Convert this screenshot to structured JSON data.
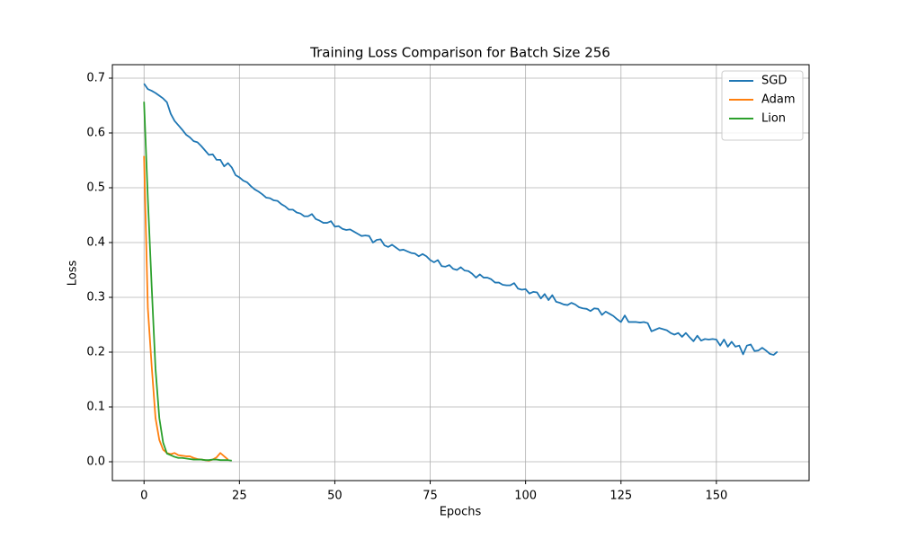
{
  "chart_data": {
    "type": "line",
    "title": "Training Loss Comparison for Batch Size 256",
    "x_label": "Epochs",
    "y_label": "Loss",
    "xlim": [
      -8.3,
      174.3
    ],
    "ylim": [
      -0.0344,
      0.7246
    ],
    "xticks": [
      0,
      25,
      50,
      75,
      100,
      125,
      150
    ],
    "yticks": [
      {
        "value": 0,
        "label": "0.0"
      },
      0.1,
      0.2,
      0.3,
      0.4,
      0.5,
      0.6,
      0.7
    ],
    "grid": true,
    "legend": "upper right",
    "series": [
      {
        "name": "SGD",
        "color": "#1f77b4",
        "x": [
          0,
          1,
          2,
          3,
          4,
          5,
          6,
          7,
          8,
          9,
          10,
          11,
          12,
          13,
          14,
          15,
          16,
          17,
          18,
          19,
          20,
          21,
          22,
          23,
          24,
          25,
          26,
          27,
          28,
          29,
          30,
          31,
          32,
          33,
          34,
          35,
          36,
          37,
          38,
          39,
          40,
          41,
          42,
          43,
          44,
          45,
          46,
          47,
          48,
          49,
          50,
          51,
          52,
          53,
          54,
          55,
          56,
          57,
          58,
          59,
          60,
          61,
          62,
          63,
          64,
          65,
          66,
          67,
          68,
          69,
          70,
          71,
          72,
          73,
          74,
          75,
          76,
          77,
          78,
          79,
          80,
          81,
          82,
          83,
          84,
          85,
          86,
          87,
          88,
          89,
          90,
          91,
          92,
          93,
          94,
          95,
          96,
          97,
          98,
          99,
          100,
          101,
          102,
          103,
          104,
          105,
          106,
          107,
          108,
          109,
          110,
          111,
          112,
          113,
          114,
          115,
          116,
          117,
          118,
          119,
          120,
          121,
          122,
          123,
          124,
          125,
          126,
          127,
          128,
          129,
          130,
          131,
          132,
          133,
          134,
          135,
          136,
          137,
          138,
          139,
          140,
          141,
          142,
          143,
          144,
          145,
          146,
          147,
          148,
          149,
          150,
          151,
          152,
          153,
          154,
          155,
          156,
          157,
          158,
          159,
          160,
          161,
          162,
          163,
          164,
          165,
          166
        ],
        "values": [
          0.69,
          0.68,
          0.677,
          0.673,
          0.668,
          0.663,
          0.656,
          0.635,
          0.622,
          0.614,
          0.606,
          0.597,
          0.592,
          0.585,
          0.583,
          0.576,
          0.568,
          0.56,
          0.561,
          0.551,
          0.551,
          0.539,
          0.545,
          0.537,
          0.523,
          0.519,
          0.513,
          0.51,
          0.503,
          0.497,
          0.493,
          0.488,
          0.482,
          0.481,
          0.477,
          0.476,
          0.47,
          0.466,
          0.46,
          0.46,
          0.455,
          0.453,
          0.448,
          0.448,
          0.452,
          0.443,
          0.44,
          0.436,
          0.436,
          0.439,
          0.429,
          0.43,
          0.425,
          0.423,
          0.424,
          0.42,
          0.416,
          0.412,
          0.413,
          0.412,
          0.4,
          0.405,
          0.406,
          0.395,
          0.392,
          0.396,
          0.391,
          0.386,
          0.387,
          0.384,
          0.381,
          0.38,
          0.375,
          0.379,
          0.375,
          0.368,
          0.364,
          0.368,
          0.357,
          0.356,
          0.359,
          0.352,
          0.35,
          0.355,
          0.349,
          0.348,
          0.343,
          0.336,
          0.342,
          0.336,
          0.336,
          0.333,
          0.327,
          0.327,
          0.323,
          0.322,
          0.322,
          0.326,
          0.316,
          0.314,
          0.315,
          0.307,
          0.31,
          0.309,
          0.298,
          0.306,
          0.295,
          0.304,
          0.292,
          0.29,
          0.287,
          0.286,
          0.29,
          0.287,
          0.282,
          0.28,
          0.279,
          0.275,
          0.28,
          0.279,
          0.268,
          0.274,
          0.27,
          0.266,
          0.26,
          0.255,
          0.267,
          0.255,
          0.255,
          0.255,
          0.254,
          0.255,
          0.253,
          0.238,
          0.241,
          0.244,
          0.242,
          0.24,
          0.235,
          0.232,
          0.235,
          0.228,
          0.235,
          0.227,
          0.22,
          0.23,
          0.221,
          0.224,
          0.223,
          0.224,
          0.223,
          0.212,
          0.223,
          0.21,
          0.219,
          0.21,
          0.212,
          0.196,
          0.212,
          0.214,
          0.202,
          0.203,
          0.208,
          0.203,
          0.197,
          0.195,
          0.201
        ]
      },
      {
        "name": "Adam",
        "color": "#ff7f0e",
        "x": [
          0,
          1,
          2,
          3,
          4,
          5,
          6,
          7,
          8,
          9,
          10,
          11,
          12,
          13,
          14,
          15,
          16,
          17,
          18,
          19,
          20,
          21,
          22
        ],
        "values": [
          0.558,
          0.28,
          0.175,
          0.08,
          0.04,
          0.022,
          0.016,
          0.014,
          0.016,
          0.012,
          0.011,
          0.01,
          0.01,
          0.007,
          0.005,
          0.004,
          0.003,
          0.002,
          0.004,
          0.008,
          0.016,
          0.01,
          0.004
        ]
      },
      {
        "name": "Lion",
        "color": "#2ca02c",
        "x": [
          0,
          1,
          2,
          3,
          4,
          5,
          6,
          7,
          8,
          9,
          10,
          11,
          12,
          13,
          14,
          15,
          16,
          17,
          18,
          19,
          20,
          21,
          22,
          23
        ],
        "values": [
          0.657,
          0.48,
          0.32,
          0.17,
          0.08,
          0.035,
          0.015,
          0.012,
          0.009,
          0.007,
          0.007,
          0.006,
          0.005,
          0.004,
          0.004,
          0.004,
          0.003,
          0.003,
          0.004,
          0.004,
          0.003,
          0.003,
          0.003,
          0.002
        ]
      }
    ]
  }
}
